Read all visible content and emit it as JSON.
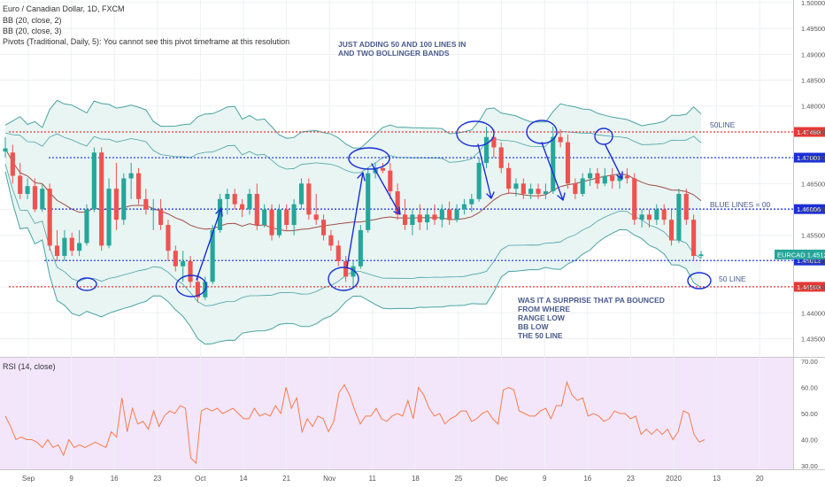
{
  "header": {
    "title": "Euro / Canadian Dollar, 1D, FXCM",
    "indicators": [
      "BB (20, close, 2)",
      "BB (20, close, 3)",
      "Pivots (Traditional, Daily, 5): You cannot see this pivot timeframe at this resolution"
    ]
  },
  "annotations": {
    "top_note": [
      "JUST ADDING 50 AND 100 LINES IN",
      "AND TWO BOLLINGER BANDS"
    ],
    "bottom_note": [
      "WAS IT A SURPRISE THAT PA BOUNCED",
      "FROM WHERE",
      "RANGE LOW",
      "BB LOW",
      "THE 50 LINE"
    ],
    "label_50line_top": "50LINE",
    "label_blue_lines": "BLUE LINES = 00",
    "label_50line_bottom": "50 LINE"
  },
  "rsi_label": "RSI (14, close)",
  "colors": {
    "up": "#26a69a",
    "down": "#ef5350",
    "red_level": "#e53935",
    "blue_level": "#1a2fd6",
    "band": "#4ba3a3",
    "band_fill": "#e8f5f3",
    "basis": "#a04d45",
    "rsi_line": "#f57c4a",
    "rsi_bg": "#f3e6fb",
    "pencil": "#1a2fd6",
    "tag_bg_red": "#e53935",
    "tag_bg_blue": "#1a2fd6",
    "tag_bg_green": "#26a69a"
  },
  "chart_data": {
    "type": "candlestick",
    "symbol": "EURCAD",
    "last_price_tag": "1.45128",
    "x_tick_labels": [
      "Sep",
      "9",
      "16",
      "23",
      "Oct",
      "14",
      "21",
      "Nov",
      "11",
      "18",
      "25",
      "Dec",
      "9",
      "16",
      "23",
      "2020",
      "13",
      "20"
    ],
    "y_tick_labels": [
      "1.50000",
      "1.49500",
      "1.49000",
      "1.48500",
      "1.48000",
      "1.47500",
      "1.47000",
      "1.46500",
      "1.46000",
      "1.45500",
      "1.45000",
      "1.44500",
      "1.44000",
      "1.43500"
    ],
    "ylim": [
      1.432,
      1.5005
    ],
    "levels": [
      {
        "value": 1.47498,
        "label": "1.47498",
        "style": "red"
      },
      {
        "value": 1.47001,
        "label": "1.47001",
        "style": "blue"
      },
      {
        "value": 1.46006,
        "label": "1.46006",
        "style": "blue"
      },
      {
        "value": 1.45012,
        "label": "1.45012",
        "style": "blue"
      },
      {
        "value": 1.44503,
        "label": "1.44503",
        "style": "red"
      }
    ],
    "candles": [
      [
        1.4712,
        1.474,
        1.47,
        1.4718
      ],
      [
        1.471,
        1.4725,
        1.465,
        1.4665
      ],
      [
        1.4665,
        1.469,
        1.462,
        1.463
      ],
      [
        1.463,
        1.466,
        1.462,
        1.4645
      ],
      [
        1.4645,
        1.466,
        1.4595,
        1.46
      ],
      [
        1.46,
        1.465,
        1.4595,
        1.464
      ],
      [
        1.464,
        1.465,
        1.452,
        1.453
      ],
      [
        1.453,
        1.456,
        1.45,
        1.451
      ],
      [
        1.451,
        1.456,
        1.45,
        1.4545
      ],
      [
        1.4545,
        1.4555,
        1.451,
        1.452
      ],
      [
        1.452,
        1.456,
        1.451,
        1.4535
      ],
      [
        1.4535,
        1.461,
        1.453,
        1.46
      ],
      [
        1.46,
        1.472,
        1.4595,
        1.471
      ],
      [
        1.471,
        1.472,
        1.452,
        1.453
      ],
      [
        1.453,
        1.466,
        1.4525,
        1.464
      ],
      [
        1.464,
        1.469,
        1.456,
        1.458
      ],
      [
        1.458,
        1.467,
        1.457,
        1.466
      ],
      [
        1.466,
        1.469,
        1.462,
        1.467
      ],
      [
        1.467,
        1.468,
        1.461,
        1.462
      ],
      [
        1.462,
        1.464,
        1.459,
        1.46
      ],
      [
        1.46,
        1.462,
        1.456,
        1.46
      ],
      [
        1.46,
        1.462,
        1.456,
        1.457
      ],
      [
        1.457,
        1.458,
        1.45,
        1.452
      ],
      [
        1.452,
        1.453,
        1.448,
        1.449
      ],
      [
        1.449,
        1.452,
        1.446,
        1.45
      ],
      [
        1.45,
        1.451,
        1.445,
        1.446
      ],
      [
        1.446,
        1.4475,
        1.442,
        1.443
      ],
      [
        1.443,
        1.447,
        1.4425,
        1.446
      ],
      [
        1.446,
        1.457,
        1.4455,
        1.456
      ],
      [
        1.456,
        1.463,
        1.4555,
        1.462
      ],
      [
        1.462,
        1.464,
        1.459,
        1.463
      ],
      [
        1.463,
        1.464,
        1.46,
        1.461
      ],
      [
        1.461,
        1.462,
        1.4585,
        1.46
      ],
      [
        1.46,
        1.464,
        1.459,
        1.463
      ],
      [
        1.463,
        1.465,
        1.456,
        1.457
      ],
      [
        1.457,
        1.461,
        1.4565,
        1.46
      ],
      [
        1.46,
        1.461,
        1.454,
        1.455
      ],
      [
        1.455,
        1.461,
        1.4545,
        1.46
      ],
      [
        1.46,
        1.461,
        1.456,
        1.457
      ],
      [
        1.457,
        1.462,
        1.455,
        1.461
      ],
      [
        1.461,
        1.466,
        1.46,
        1.465
      ],
      [
        1.465,
        1.466,
        1.458,
        1.459
      ],
      [
        1.459,
        1.463,
        1.457,
        1.458
      ],
      [
        1.458,
        1.459,
        1.454,
        1.455
      ],
      [
        1.455,
        1.456,
        1.452,
        1.453
      ],
      [
        1.453,
        1.454,
        1.449,
        1.45
      ],
      [
        1.45,
        1.451,
        1.446,
        1.447
      ],
      [
        1.447,
        1.45,
        1.445,
        1.449
      ],
      [
        1.449,
        1.457,
        1.4485,
        1.456
      ],
      [
        1.456,
        1.468,
        1.4555,
        1.467
      ],
      [
        1.467,
        1.469,
        1.466,
        1.468
      ],
      [
        1.468,
        1.469,
        1.467,
        1.4675
      ],
      [
        1.4675,
        1.469,
        1.462,
        1.4635
      ],
      [
        1.4635,
        1.465,
        1.458,
        1.459
      ],
      [
        1.459,
        1.462,
        1.456,
        1.457
      ],
      [
        1.457,
        1.46,
        1.455,
        1.459
      ],
      [
        1.459,
        1.461,
        1.456,
        1.4575
      ],
      [
        1.4575,
        1.46,
        1.456,
        1.459
      ],
      [
        1.459,
        1.461,
        1.457,
        1.458
      ],
      [
        1.458,
        1.461,
        1.4565,
        1.46
      ],
      [
        1.46,
        1.4615,
        1.457,
        1.458
      ],
      [
        1.458,
        1.461,
        1.4575,
        1.46
      ],
      [
        1.46,
        1.462,
        1.459,
        1.461
      ],
      [
        1.461,
        1.463,
        1.4595,
        1.462
      ],
      [
        1.462,
        1.47,
        1.4615,
        1.469
      ],
      [
        1.469,
        1.476,
        1.468,
        1.474
      ],
      [
        1.474,
        1.4755,
        1.47,
        1.472
      ],
      [
        1.472,
        1.473,
        1.467,
        1.468
      ],
      [
        1.468,
        1.469,
        1.463,
        1.464
      ],
      [
        1.464,
        1.466,
        1.4625,
        1.465
      ],
      [
        1.465,
        1.466,
        1.462,
        1.463
      ],
      [
        1.463,
        1.465,
        1.462,
        1.464
      ],
      [
        1.464,
        1.465,
        1.462,
        1.463
      ],
      [
        1.463,
        1.465,
        1.462,
        1.4635
      ],
      [
        1.4635,
        1.476,
        1.463,
        1.474
      ],
      [
        1.474,
        1.4755,
        1.472,
        1.473
      ],
      [
        1.473,
        1.4745,
        1.464,
        1.465
      ],
      [
        1.465,
        1.466,
        1.462,
        1.463
      ],
      [
        1.463,
        1.467,
        1.4625,
        1.466
      ],
      [
        1.466,
        1.468,
        1.4645,
        1.467
      ],
      [
        1.467,
        1.468,
        1.464,
        1.465
      ],
      [
        1.465,
        1.468,
        1.4645,
        1.4665
      ],
      [
        1.4665,
        1.468,
        1.464,
        1.4655
      ],
      [
        1.4655,
        1.467,
        1.464,
        1.4665
      ],
      [
        1.4665,
        1.468,
        1.465,
        1.466
      ],
      [
        1.466,
        1.467,
        1.457,
        1.458
      ],
      [
        1.458,
        1.46,
        1.4565,
        1.459
      ],
      [
        1.459,
        1.46,
        1.4565,
        1.458
      ],
      [
        1.458,
        1.461,
        1.457,
        1.46
      ],
      [
        1.46,
        1.461,
        1.457,
        1.458
      ],
      [
        1.458,
        1.46,
        1.453,
        1.454
      ],
      [
        1.454,
        1.464,
        1.4535,
        1.463
      ],
      [
        1.463,
        1.464,
        1.457,
        1.458
      ],
      [
        1.458,
        1.459,
        1.45,
        1.451
      ],
      [
        1.451,
        1.452,
        1.4505,
        1.4513
      ]
    ],
    "rsi": {
      "ylim": [
        30,
        70
      ],
      "y_tick_labels": [
        "70.00",
        "60.00",
        "50.00",
        "40.00",
        "30.00"
      ],
      "values": [
        49,
        45,
        40,
        41,
        40,
        40,
        39,
        37,
        40,
        37,
        38,
        34,
        40,
        37,
        38,
        37,
        38,
        39,
        38,
        37,
        43,
        41,
        56,
        43,
        52,
        46,
        47,
        44,
        51,
        45,
        49,
        51,
        50,
        53,
        52,
        33,
        31,
        51,
        52,
        51,
        52,
        50,
        51,
        52,
        50,
        48,
        48,
        52,
        49,
        50,
        49,
        53,
        50,
        60,
        52,
        56,
        43,
        48,
        45,
        49,
        48,
        43,
        47,
        58,
        61,
        57,
        51,
        46,
        49,
        49,
        52,
        48,
        47,
        49,
        50,
        49,
        55,
        48,
        60,
        57,
        52,
        49,
        50,
        46,
        48,
        49,
        51,
        51,
        47,
        48,
        50,
        51,
        48,
        46,
        59,
        60,
        59,
        51,
        50,
        49,
        49,
        51,
        52,
        48,
        53,
        53,
        62,
        57,
        55,
        56,
        49,
        50,
        49,
        47,
        48,
        51,
        50,
        50,
        48,
        49,
        42,
        44,
        42,
        44,
        42,
        44,
        40,
        43,
        51,
        50,
        42,
        39,
        40
      ]
    }
  }
}
